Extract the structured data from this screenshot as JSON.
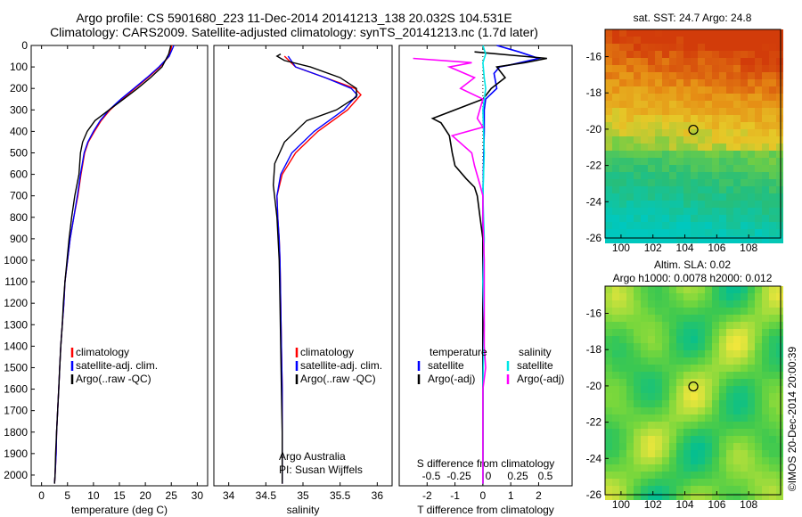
{
  "header": {
    "title_line1": "Argo profile: CS 5901680_223 11-Dec-2014 20141213_138 20.032S 104.531E",
    "title_line2": "Climatology: CARS2009. Satellite-adjusted climatology: synTS_20141213.nc (1.7d later)"
  },
  "side_stamp": "©IMOS 20-Dec-2014 20:00:39",
  "colors": {
    "climatology": "#ff0000",
    "satellite": "#0000ff",
    "argo": "#000000",
    "sal_sat": "#00e6e6",
    "sal_argo": "#ff00ff"
  },
  "chart_data": [
    {
      "type": "line",
      "xlabel": "temperature (deg C)",
      "ylim": [
        2050,
        0
      ],
      "xlim": [
        -2,
        32
      ],
      "xticks": [
        0,
        5,
        10,
        15,
        20,
        25,
        30
      ],
      "yticks": [
        0,
        100,
        200,
        300,
        400,
        500,
        600,
        700,
        800,
        900,
        1000,
        1100,
        1200,
        1300,
        1400,
        1500,
        1600,
        1700,
        1800,
        1900,
        2000
      ],
      "legend": [
        "climatology",
        "satellite-adj. clim.",
        "Argo(..raw -QC)"
      ],
      "series": [
        {
          "name": "climatology",
          "color": "#ff0000",
          "points": [
            [
              25.1,
              0
            ],
            [
              24.6,
              50
            ],
            [
              22.8,
              100
            ],
            [
              20.5,
              150
            ],
            [
              18.0,
              200
            ],
            [
              15.5,
              250
            ],
            [
              13.2,
              300
            ],
            [
              11.5,
              350
            ],
            [
              10.2,
              400
            ],
            [
              9.0,
              450
            ],
            [
              8.3,
              500
            ],
            [
              7.6,
              600
            ],
            [
              7.0,
              700
            ],
            [
              6.2,
              800
            ],
            [
              5.5,
              900
            ],
            [
              5.0,
              1000
            ],
            [
              4.5,
              1100
            ],
            [
              4.3,
              1200
            ],
            [
              4.0,
              1300
            ],
            [
              3.7,
              1400
            ],
            [
              3.5,
              1500
            ],
            [
              3.3,
              1600
            ],
            [
              3.1,
              1700
            ],
            [
              2.9,
              1800
            ],
            [
              2.8,
              1900
            ],
            [
              2.6,
              2000
            ],
            [
              2.5,
              2040
            ]
          ]
        },
        {
          "name": "satellite-adj. clim.",
          "color": "#0000ff",
          "points": [
            [
              25.5,
              0
            ],
            [
              24.6,
              50
            ],
            [
              22.6,
              100
            ],
            [
              20.3,
              150
            ],
            [
              17.8,
              200
            ],
            [
              15.3,
              250
            ],
            [
              13.0,
              300
            ],
            [
              11.3,
              350
            ],
            [
              10.0,
              400
            ],
            [
              8.9,
              450
            ],
            [
              8.2,
              500
            ],
            [
              7.5,
              600
            ],
            [
              6.9,
              700
            ],
            [
              6.2,
              800
            ],
            [
              5.5,
              900
            ],
            [
              5.0,
              1000
            ],
            [
              4.5,
              1100
            ],
            [
              4.3,
              1200
            ],
            [
              4.0,
              1300
            ],
            [
              3.7,
              1400
            ],
            [
              3.5,
              1500
            ],
            [
              3.3,
              1600
            ],
            [
              3.1,
              1700
            ],
            [
              2.9,
              1800
            ],
            [
              2.8,
              1900
            ],
            [
              2.6,
              2000
            ],
            [
              2.5,
              2040
            ]
          ]
        },
        {
          "name": "Argo(..raw -QC)",
          "color": "#000000",
          "points": [
            [
              24.9,
              0
            ],
            [
              24.5,
              40
            ],
            [
              23.2,
              100
            ],
            [
              21.0,
              150
            ],
            [
              18.5,
              200
            ],
            [
              15.8,
              250
            ],
            [
              13.0,
              300
            ],
            [
              10.3,
              350
            ],
            [
              8.8,
              400
            ],
            [
              7.9,
              450
            ],
            [
              7.5,
              500
            ],
            [
              7.2,
              600
            ],
            [
              6.4,
              700
            ],
            [
              5.8,
              800
            ],
            [
              5.3,
              900
            ],
            [
              4.9,
              1000
            ],
            [
              4.5,
              1100
            ],
            [
              4.2,
              1200
            ],
            [
              4.0,
              1300
            ],
            [
              3.7,
              1400
            ],
            [
              3.5,
              1500
            ],
            [
              3.3,
              1600
            ],
            [
              3.1,
              1700
            ],
            [
              2.9,
              1800
            ],
            [
              2.7,
              1900
            ],
            [
              2.6,
              2000
            ],
            [
              2.5,
              2040
            ]
          ]
        }
      ]
    },
    {
      "type": "line",
      "xlabel": "salinity",
      "ylim": [
        2050,
        0
      ],
      "xlim": [
        33.8,
        36.2
      ],
      "xticks": [
        34,
        34.5,
        35,
        35.5,
        36
      ],
      "legend": [
        "climatology",
        "satellite-adj. clim.",
        "Argo(..raw -QC)"
      ],
      "annotation": [
        "Argo Australia",
        "PI: Susan Wijffels"
      ],
      "series": [
        {
          "name": "climatology",
          "color": "#ff0000",
          "points": [
            [
              34.75,
              50
            ],
            [
              34.9,
              100
            ],
            [
              35.3,
              150
            ],
            [
              35.7,
              200
            ],
            [
              35.78,
              230
            ],
            [
              35.6,
              300
            ],
            [
              35.2,
              400
            ],
            [
              34.9,
              500
            ],
            [
              34.72,
              600
            ],
            [
              34.65,
              700
            ],
            [
              34.66,
              800
            ],
            [
              34.68,
              900
            ],
            [
              34.69,
              1000
            ],
            [
              34.7,
              1200
            ],
            [
              34.71,
              1400
            ],
            [
              34.72,
              1600
            ],
            [
              34.72,
              1800
            ],
            [
              34.72,
              2000
            ],
            [
              34.72,
              2040
            ]
          ]
        },
        {
          "name": "satellite-adj. clim.",
          "color": "#0000ff",
          "points": [
            [
              34.8,
              50
            ],
            [
              34.9,
              100
            ],
            [
              35.3,
              150
            ],
            [
              35.65,
              200
            ],
            [
              35.73,
              230
            ],
            [
              35.55,
              300
            ],
            [
              35.15,
              400
            ],
            [
              34.85,
              500
            ],
            [
              34.7,
              600
            ],
            [
              34.65,
              700
            ],
            [
              34.66,
              800
            ],
            [
              34.68,
              900
            ],
            [
              34.69,
              1000
            ],
            [
              34.7,
              1200
            ],
            [
              34.71,
              1400
            ],
            [
              34.72,
              1600
            ],
            [
              34.72,
              1800
            ],
            [
              34.72,
              2000
            ],
            [
              34.72,
              2040
            ]
          ]
        },
        {
          "name": "Argo(..raw -QC)",
          "color": "#000000",
          "points": [
            [
              34.7,
              40
            ],
            [
              34.65,
              50
            ],
            [
              34.75,
              70
            ],
            [
              35.1,
              100
            ],
            [
              35.5,
              150
            ],
            [
              35.72,
              200
            ],
            [
              35.72,
              240
            ],
            [
              35.45,
              300
            ],
            [
              35.05,
              350
            ],
            [
              34.75,
              450
            ],
            [
              34.62,
              550
            ],
            [
              34.6,
              650
            ],
            [
              34.65,
              800
            ],
            [
              34.68,
              1000
            ],
            [
              34.69,
              1200
            ],
            [
              34.7,
              1400
            ],
            [
              34.71,
              1600
            ],
            [
              34.72,
              1800
            ],
            [
              34.72,
              2000
            ],
            [
              34.72,
              2040
            ]
          ]
        }
      ]
    },
    {
      "type": "line",
      "xlabel": "T difference from climatology",
      "top_label": "S difference from climatology",
      "ylim": [
        2050,
        0
      ],
      "xlim": [
        -3,
        3.2
      ],
      "xticks": [
        -2,
        -1,
        0,
        1,
        2
      ],
      "top_ticks": [
        "-0.5",
        "-0.25",
        "0",
        "0.25",
        "0.5"
      ],
      "legend_t_title": "temperature",
      "legend_s_title": "salinity",
      "legend": [
        "satellite",
        "Argo(-adj)",
        "satellite",
        "Argo(-adj)"
      ],
      "series": [
        {
          "name": "satellite",
          "color": "#0000ff",
          "points": [
            [
              0.5,
              0
            ],
            [
              1.3,
              30
            ],
            [
              2.0,
              60
            ],
            [
              1.0,
              90
            ],
            [
              0.6,
              100
            ],
            [
              0.4,
              130
            ],
            [
              0.5,
              200
            ],
            [
              0.1,
              250
            ],
            [
              0.05,
              300
            ],
            [
              0.05,
              400
            ],
            [
              0.0,
              700
            ],
            [
              0.0,
              1000
            ],
            [
              0.0,
              1500
            ],
            [
              0.0,
              2000
            ],
            [
              0.0,
              2040
            ]
          ]
        },
        {
          "name": "Argo(-adj)",
          "color": "#000000",
          "points": [
            [
              -0.3,
              30
            ],
            [
              1.4,
              50
            ],
            [
              2.3,
              60
            ],
            [
              1.5,
              80
            ],
            [
              0.5,
              100
            ],
            [
              0.8,
              150
            ],
            [
              0.3,
              200
            ],
            [
              0.0,
              250
            ],
            [
              -1.8,
              340
            ],
            [
              -1.5,
              360
            ],
            [
              -1.2,
              420
            ],
            [
              -1.1,
              500
            ],
            [
              -1.0,
              560
            ],
            [
              -0.6,
              620
            ],
            [
              -0.3,
              660
            ],
            [
              -0.2,
              700
            ],
            [
              -0.1,
              800
            ],
            [
              0.0,
              900
            ],
            [
              0.0,
              1200
            ],
            [
              0.0,
              1600
            ],
            [
              0.0,
              2040
            ]
          ]
        },
        {
          "name": "satellite",
          "color": "#00e6e6",
          "points": [
            [
              0.0,
              0
            ],
            [
              0.1,
              40
            ],
            [
              0.0,
              80
            ],
            [
              0.05,
              150
            ],
            [
              0.1,
              200
            ],
            [
              0.0,
              300
            ],
            [
              0.05,
              500
            ],
            [
              0.0,
              700
            ],
            [
              0.05,
              900
            ],
            [
              0.0,
              1100
            ],
            [
              0.05,
              1300
            ],
            [
              0.0,
              1600
            ],
            [
              0.0,
              2040
            ]
          ]
        },
        {
          "name": "Argo(-adj)",
          "color": "#ff00ff",
          "points": [
            [
              -2.5,
              60
            ],
            [
              -0.4,
              80
            ],
            [
              -1.2,
              100
            ],
            [
              -0.3,
              150
            ],
            [
              -0.8,
              200
            ],
            [
              0.0,
              250
            ],
            [
              -0.2,
              340
            ],
            [
              0.0,
              380
            ],
            [
              -1.1,
              420
            ],
            [
              -0.4,
              500
            ],
            [
              -0.3,
              560
            ],
            [
              -0.1,
              650
            ],
            [
              0.0,
              700
            ],
            [
              0.0,
              800
            ],
            [
              0.05,
              1000
            ],
            [
              0.05,
              1400
            ],
            [
              0.1,
              1500
            ],
            [
              0.0,
              1600
            ],
            [
              0.0,
              2040
            ]
          ]
        }
      ]
    },
    {
      "type": "heatmap",
      "title": "sat. SST: 24.7  Argo: 24.8",
      "xlim": [
        99,
        110
      ],
      "ylim": [
        -26,
        -14.5
      ],
      "xticks": [
        100,
        102,
        104,
        106,
        108
      ],
      "yticks": [
        -26,
        -24,
        -22,
        -20,
        -18,
        -16
      ],
      "marker": [
        104.531,
        -20.032
      ]
    },
    {
      "type": "heatmap",
      "title_line1": "Altim. SLA: 0.02",
      "title_line2": "Argo h1000: 0.0078 h2000: 0.012",
      "xlim": [
        99,
        110
      ],
      "ylim": [
        -26,
        -14.5
      ],
      "xticks": [
        100,
        102,
        104,
        106,
        108
      ],
      "yticks": [
        -26,
        -24,
        -22,
        -20,
        -18,
        -16
      ],
      "marker": [
        104.531,
        -20.032
      ]
    }
  ]
}
